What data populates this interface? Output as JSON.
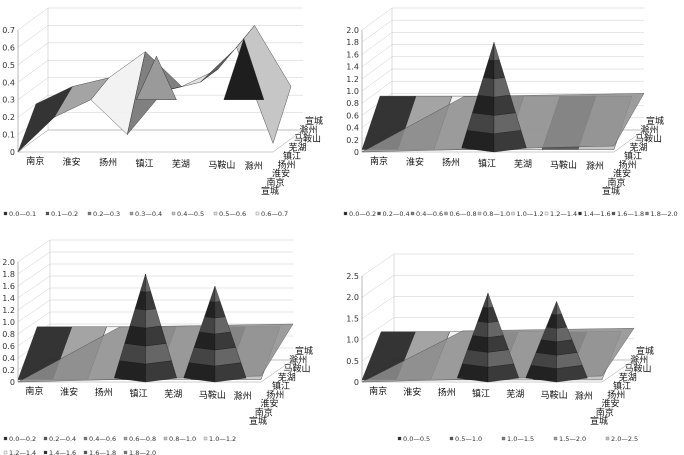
{
  "cities": [
    "南京",
    "淮安",
    "扬州",
    "镇江",
    "芜湖",
    "马鞍山",
    "滁州",
    "宣城"
  ],
  "chart_data": [
    {
      "type": "surface3d",
      "zlim": [
        0,
        0.7
      ],
      "zticks": [
        "0",
        "0.1",
        "0.2",
        "0.3",
        "0.4",
        "0.5",
        "0.6",
        "0.7"
      ],
      "x": [
        "南京",
        "淮安",
        "扬州",
        "镇江",
        "芜湖",
        "马鞍山",
        "滁州"
      ],
      "y": [
        "宣城",
        "南京",
        "淮安",
        "扬州",
        "镇江",
        "芜湖",
        "马鞍山",
        "滁州",
        "宣城"
      ],
      "surface_front": [
        0.0,
        0.2,
        0.3,
        0.1,
        0.35,
        0.4,
        0.6,
        0.05
      ],
      "surface_back": [
        0.2,
        0.3,
        0.35,
        0.5,
        0.3,
        0.4,
        0.65,
        0.3
      ],
      "legend": [
        "0.0—0.1",
        "0.1—0.2",
        "0.2—0.3",
        "0.3—0.4",
        "0.4—0.5",
        "0.5—0.6",
        "0.6—0.7"
      ]
    },
    {
      "type": "surface3d",
      "zlim": [
        0,
        2.0
      ],
      "zticks": [
        "0",
        "0.2",
        "0.4",
        "0.6",
        "0.8",
        "1.0",
        "1.2",
        "1.4",
        "1.6",
        "1.8",
        "2.0"
      ],
      "x": [
        "南京",
        "淮安",
        "扬州",
        "镇江",
        "芜湖",
        "马鞍山",
        "滁州"
      ],
      "y": [
        "宣城",
        "南京",
        "淮安",
        "扬州",
        "镇江",
        "芜湖",
        "马鞍山",
        "滁州",
        "宣城"
      ],
      "peaks": [
        {
          "x": "镇江",
          "value": 1.8
        }
      ],
      "legend": [
        "0.0—0.2",
        "0.2—0.4",
        "0.4—0.6",
        "0.6—0.8",
        "0.8—1.0",
        "1.0—1.2",
        "1.2—1.4",
        "1.4—1.6",
        "1.6—1.8",
        "1.8—2.0"
      ]
    },
    {
      "type": "surface3d",
      "zlim": [
        0,
        2.0
      ],
      "zticks": [
        "0",
        "0.2",
        "0.4",
        "0.6",
        "0.8",
        "1.0",
        "1.2",
        "1.4",
        "1.6",
        "1.8",
        "2.0"
      ],
      "x": [
        "南京",
        "淮安",
        "扬州",
        "镇江",
        "芜湖",
        "马鞍山",
        "滁州"
      ],
      "y": [
        "宣城",
        "南京",
        "淮安",
        "扬州",
        "镇江",
        "芜湖",
        "马鞍山",
        "滁州",
        "宣城"
      ],
      "peaks": [
        {
          "x": "镇江",
          "value": 1.8
        },
        {
          "x": "马鞍山",
          "value": 1.6
        }
      ],
      "legend": [
        "0.0—0.2",
        "0.2—0.4",
        "0.4—0.6",
        "0.6—0.8",
        "0.8—1.0",
        "1.0—1.2",
        "1.2—1.4",
        "1.4—1.6",
        "1.6—1.8",
        "1.8—2.0"
      ]
    },
    {
      "type": "surface3d",
      "zlim": [
        0,
        2.5
      ],
      "zticks": [
        "0",
        "0.5",
        "1.0",
        "1.5",
        "2.0",
        "2.5"
      ],
      "x": [
        "南京",
        "淮安",
        "扬州",
        "镇江",
        "芜湖",
        "马鞍山",
        "滁州"
      ],
      "y": [
        "宣城",
        "南京",
        "淮安",
        "扬州",
        "镇江",
        "芜湖",
        "马鞍山",
        "滁州",
        "宣城"
      ],
      "peaks": [
        {
          "x": "镇江",
          "value": 2.1
        },
        {
          "x": "马鞍山",
          "value": 1.9
        }
      ],
      "legend": [
        "0.0—0.5",
        "0.5—1.0",
        "1.0—1.5",
        "1.5—2.0",
        "2.0—2.5"
      ]
    }
  ]
}
